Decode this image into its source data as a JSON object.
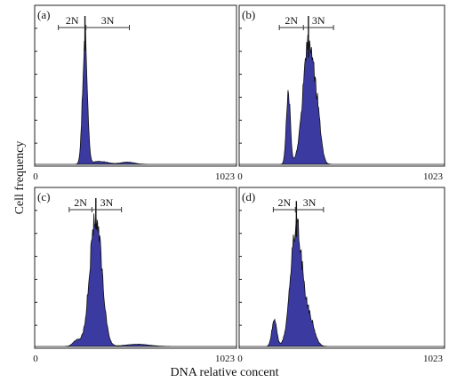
{
  "figure": {
    "ylabel": "Cell frequency",
    "xlabel": "DNA relative concent"
  },
  "colors": {
    "fill": "#3a3aa0",
    "stroke": "#111111"
  },
  "chart_data": [
    {
      "type": "area",
      "panel_label": "(a)",
      "gate_labels": [
        "2N",
        "3N"
      ],
      "gate_bounds": [
        120,
        260,
        480
      ],
      "xlim": [
        0,
        1023
      ],
      "x_tick_labels": [
        "0",
        "1023"
      ],
      "ylim": [
        0,
        100
      ],
      "peaks": [
        {
          "mu": 255,
          "sigma": 12,
          "amp": 85,
          "spike": 100
        },
        {
          "mu": 330,
          "sigma": 40,
          "amp": 2
        },
        {
          "mu": 470,
          "sigma": 35,
          "amp": 1.5
        }
      ]
    },
    {
      "type": "area",
      "panel_label": "(b)",
      "gate_labels": [
        "2N",
        "3N"
      ],
      "gate_bounds": [
        200,
        320,
        470
      ],
      "xlim": [
        0,
        1023
      ],
      "x_tick_labels": [
        "0",
        "1023"
      ],
      "ylim": [
        0,
        100
      ],
      "peaks": [
        {
          "mu": 245,
          "sigma": 10,
          "amp": 48
        },
        {
          "mu": 345,
          "sigma": 28,
          "amp": 80,
          "spike": 100
        },
        {
          "mu": 390,
          "sigma": 18,
          "amp": 22
        }
      ]
    },
    {
      "type": "area",
      "panel_label": "(c)",
      "gate_labels": [
        "2N",
        "3N"
      ],
      "gate_bounds": [
        175,
        290,
        440
      ],
      "xlim": [
        0,
        1023
      ],
      "x_tick_labels": [
        "0",
        "1023"
      ],
      "ylim": [
        0,
        100
      ],
      "peaks": [
        {
          "mu": 310,
          "sigma": 30,
          "amp": 88,
          "spike": 100
        },
        {
          "mu": 215,
          "sigma": 20,
          "amp": 4
        },
        {
          "mu": 520,
          "sigma": 60,
          "amp": 1.5
        }
      ]
    },
    {
      "type": "area",
      "panel_label": "(d)",
      "gate_labels": [
        "2N",
        "3N"
      ],
      "gate_bounds": [
        170,
        280,
        420
      ],
      "xlim": [
        0,
        1023
      ],
      "x_tick_labels": [
        "0",
        "1023"
      ],
      "ylim": [
        0,
        100
      ],
      "peaks": [
        {
          "mu": 175,
          "sigma": 12,
          "amp": 18
        },
        {
          "mu": 285,
          "sigma": 28,
          "amp": 82,
          "spike": 98
        },
        {
          "mu": 350,
          "sigma": 25,
          "amp": 18
        }
      ]
    }
  ]
}
